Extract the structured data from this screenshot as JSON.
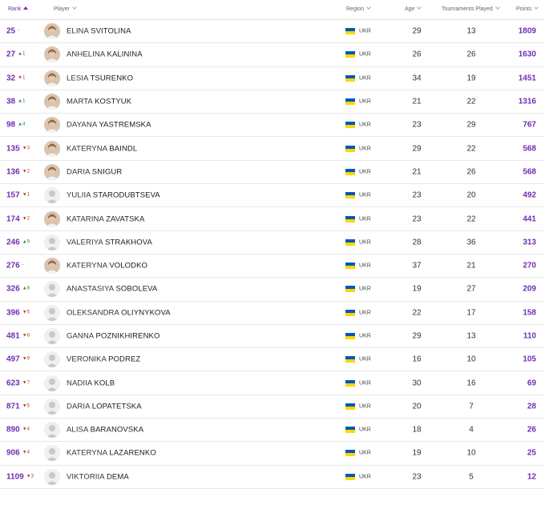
{
  "header": {
    "rank": "Rank",
    "player": "Player",
    "region": "Region",
    "age": "Age",
    "tournaments": "Tournaments Played",
    "points": "Points"
  },
  "colors": {
    "accent": "#6e2fb3",
    "up": "#2f8a2f",
    "down": "#c0392b",
    "flag_blue": "#0057b8",
    "flag_yellow": "#ffd700"
  },
  "rows": [
    {
      "rank": "25",
      "move": "-",
      "dir": "same",
      "first": "ELINA",
      "last": "SVITOLINA",
      "photo": true,
      "country": "UKR",
      "age": "29",
      "tournaments": "13",
      "points": "1809"
    },
    {
      "rank": "27",
      "move": "▲1",
      "dir": "up",
      "first": "ANHELINA",
      "last": "KALININA",
      "photo": true,
      "country": "UKR",
      "age": "26",
      "tournaments": "26",
      "points": "1630"
    },
    {
      "rank": "32",
      "move": "▼1",
      "dir": "down",
      "first": "LESIA",
      "last": "TSURENKO",
      "photo": true,
      "country": "UKR",
      "age": "34",
      "tournaments": "19",
      "points": "1451"
    },
    {
      "rank": "38",
      "move": "▲1",
      "dir": "up",
      "first": "MARTA",
      "last": "KOSTYUK",
      "photo": true,
      "country": "UKR",
      "age": "21",
      "tournaments": "22",
      "points": "1316"
    },
    {
      "rank": "98",
      "move": "▲4",
      "dir": "up",
      "first": "DAYANA",
      "last": "YASTREMSKA",
      "photo": true,
      "country": "UKR",
      "age": "23",
      "tournaments": "29",
      "points": "767"
    },
    {
      "rank": "135",
      "move": "▼3",
      "dir": "down",
      "first": "KATERYNA",
      "last": "BAINDL",
      "photo": true,
      "country": "UKR",
      "age": "29",
      "tournaments": "22",
      "points": "568"
    },
    {
      "rank": "136",
      "move": "▼2",
      "dir": "down",
      "first": "DARIA",
      "last": "SNIGUR",
      "photo": true,
      "country": "UKR",
      "age": "21",
      "tournaments": "26",
      "points": "568"
    },
    {
      "rank": "157",
      "move": "▼1",
      "dir": "down",
      "first": "YULIIA",
      "last": "STARODUBTSEVA",
      "photo": false,
      "country": "UKR",
      "age": "23",
      "tournaments": "20",
      "points": "492"
    },
    {
      "rank": "174",
      "move": "▼2",
      "dir": "down",
      "first": "KATARINA",
      "last": "ZAVATSKA",
      "photo": true,
      "country": "UKR",
      "age": "23",
      "tournaments": "22",
      "points": "441"
    },
    {
      "rank": "246",
      "move": "▲9",
      "dir": "up",
      "first": "VALERIYA",
      "last": "STRAKHOVA",
      "photo": false,
      "country": "UKR",
      "age": "28",
      "tournaments": "36",
      "points": "313"
    },
    {
      "rank": "276",
      "move": "-",
      "dir": "same",
      "first": "KATERYNA",
      "last": "VOLODKO",
      "photo": true,
      "country": "UKR",
      "age": "37",
      "tournaments": "21",
      "points": "270"
    },
    {
      "rank": "326",
      "move": "▲8",
      "dir": "up",
      "first": "ANASTASIYA",
      "last": "SOBOLEVA",
      "photo": false,
      "country": "UKR",
      "age": "19",
      "tournaments": "27",
      "points": "209"
    },
    {
      "rank": "396",
      "move": "▼5",
      "dir": "down",
      "first": "OLEKSANDRA",
      "last": "OLIYNYKOVA",
      "photo": false,
      "country": "UKR",
      "age": "22",
      "tournaments": "17",
      "points": "158"
    },
    {
      "rank": "481",
      "move": "▼6",
      "dir": "down",
      "first": "GANNA",
      "last": "POZNIKHIRENKO",
      "photo": false,
      "country": "UKR",
      "age": "29",
      "tournaments": "13",
      "points": "110"
    },
    {
      "rank": "497",
      "move": "▼9",
      "dir": "down",
      "first": "VERONIKA",
      "last": "PODREZ",
      "photo": false,
      "country": "UKR",
      "age": "16",
      "tournaments": "10",
      "points": "105"
    },
    {
      "rank": "623",
      "move": "▼7",
      "dir": "down",
      "first": "NADIIA",
      "last": "KOLB",
      "photo": false,
      "country": "UKR",
      "age": "30",
      "tournaments": "16",
      "points": "69"
    },
    {
      "rank": "871",
      "move": "▼5",
      "dir": "down",
      "first": "DARIA",
      "last": "LOPATETSKA",
      "photo": false,
      "country": "UKR",
      "age": "20",
      "tournaments": "7",
      "points": "28"
    },
    {
      "rank": "890",
      "move": "▼4",
      "dir": "down",
      "first": "ALISA",
      "last": "BARANOVSKA",
      "photo": false,
      "country": "UKR",
      "age": "18",
      "tournaments": "4",
      "points": "26"
    },
    {
      "rank": "906",
      "move": "▼4",
      "dir": "down",
      "first": "KATERYNA",
      "last": "LAZARENKO",
      "photo": false,
      "country": "UKR",
      "age": "19",
      "tournaments": "10",
      "points": "25"
    },
    {
      "rank": "1109",
      "move": "▼3",
      "dir": "down",
      "first": "VIKTORIIA",
      "last": "DEMA",
      "photo": false,
      "country": "UKR",
      "age": "23",
      "tournaments": "5",
      "points": "12"
    }
  ]
}
